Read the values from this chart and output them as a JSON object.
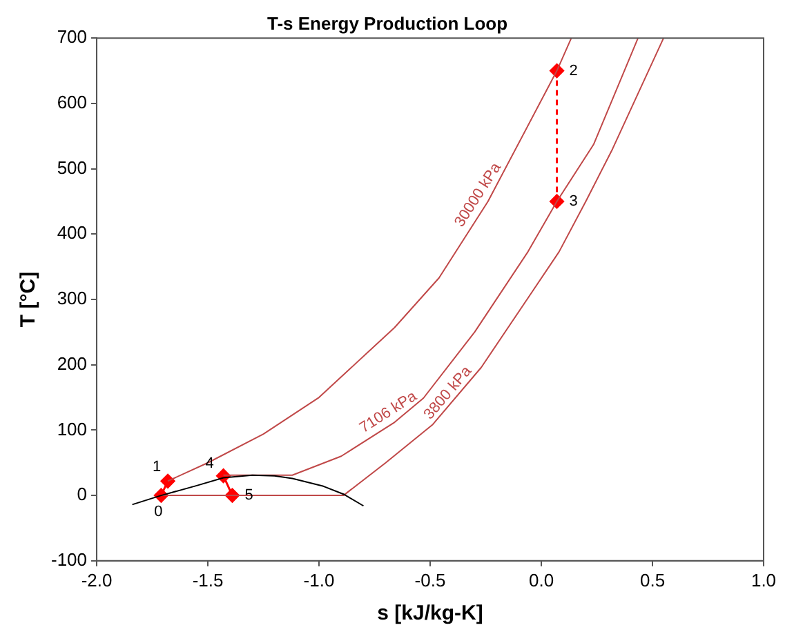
{
  "chart_data": {
    "type": "line",
    "title": "T-s Energy Production Loop",
    "xlabel": "s [kJ/kg-K]",
    "ylabel": "T [°C]",
    "series": [
      {
        "color": "#000000",
        "x": [
          -1.84,
          -1.71,
          -1.55,
          -1.43,
          -1.3,
          -1.2,
          -1.12,
          -0.98,
          -0.89,
          -0.8
        ],
        "values": [
          -14,
          0,
          15,
          27,
          31,
          30,
          26,
          14,
          2,
          -16
        ]
      },
      {
        "color": "#c04848",
        "x": [
          -1.68,
          -1.5,
          -1.25,
          -1.0,
          -0.66,
          -0.46,
          -0.24,
          0.07,
          0.135
        ],
        "values": [
          22,
          50,
          94,
          150,
          257,
          333,
          450,
          650,
          700
        ]
      },
      {
        "color": "#c04848",
        "x": [
          -1.43,
          -1.12,
          -0.9,
          -0.66,
          -0.53,
          -0.3,
          -0.06,
          0.07,
          0.235,
          0.435
        ],
        "values": [
          31,
          31,
          60,
          112,
          149,
          250,
          373,
          450,
          537,
          700
        ]
      },
      {
        "color": "#c04848",
        "x": [
          -1.71,
          -0.89,
          -0.7,
          -0.49,
          -0.27,
          0.08,
          0.2,
          0.32,
          0.55
        ],
        "values": [
          0,
          0,
          50,
          108,
          196,
          373,
          450,
          530,
          700
        ]
      },
      {
        "color": "#ff0000",
        "marker": "diamond",
        "x": [
          -1.71,
          -1.68,
          null,
          -1.43,
          -1.39
        ],
        "values": [
          0,
          22,
          null,
          30,
          0
        ]
      },
      {
        "color": "#ff0000",
        "marker": "diamond",
        "line_style": "dashed",
        "x": [
          0.07,
          0.07
        ],
        "values": [
          650,
          450
        ]
      }
    ],
    "annotations": [
      {
        "text": "30000 kPa",
        "x": -0.24,
        "y": 450
      },
      {
        "text": "7106 kPa",
        "x": -0.66,
        "y": 112
      },
      {
        "text": "3800 kPa",
        "x": -0.38,
        "y": 145
      },
      {
        "text": "0",
        "x": -1.71,
        "y": 0
      },
      {
        "text": "1",
        "x": -1.68,
        "y": 22
      },
      {
        "text": "2",
        "x": 0.07,
        "y": 650
      },
      {
        "text": "3",
        "x": 0.07,
        "y": 450
      },
      {
        "text": "4",
        "x": -1.43,
        "y": 30
      },
      {
        "text": "5",
        "x": -1.39,
        "y": 0
      }
    ],
    "xlim": [
      -2.0,
      1.0
    ],
    "xticks": [
      {
        "value": -2.0,
        "label": "-2.0"
      },
      {
        "value": -1.5,
        "label": "-1.5"
      },
      {
        "value": -1.0,
        "label": "-1.0"
      },
      {
        "value": -0.5,
        "label": "-0.5"
      },
      {
        "value": 0,
        "label": "0.0"
      },
      {
        "value": 0.5,
        "label": "0.5"
      },
      {
        "value": 1.0,
        "label": "1.0"
      }
    ],
    "ylim": [
      -100,
      700
    ],
    "yticks": [
      -100,
      0,
      100,
      200,
      300,
      400,
      500,
      600,
      700
    ],
    "grid": false,
    "legend": false,
    "marker": "none",
    "line_style": "solid"
  }
}
